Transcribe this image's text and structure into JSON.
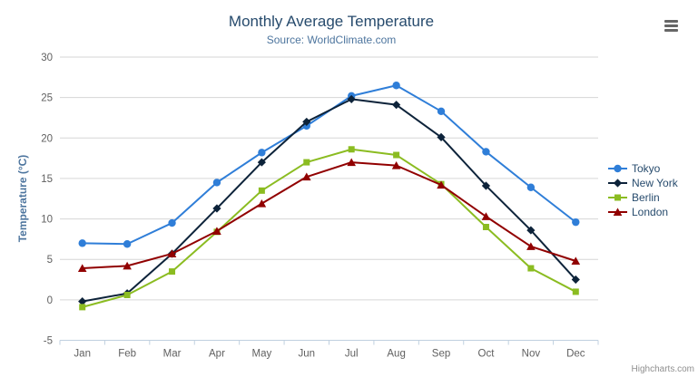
{
  "chart_data": {
    "type": "line",
    "title": "Monthly Average Temperature",
    "subtitle": "Source: WorldClimate.com",
    "categories": [
      "Jan",
      "Feb",
      "Mar",
      "Apr",
      "May",
      "Jun",
      "Jul",
      "Aug",
      "Sep",
      "Oct",
      "Nov",
      "Dec"
    ],
    "xlabel": "",
    "ylabel": "Temperature (°C)",
    "ylim": [
      -5,
      30
    ],
    "ytick_interval": 5,
    "grid": true,
    "legend_position": "right-middle",
    "series": [
      {
        "name": "Tokyo",
        "color": "#2f7ed8",
        "marker": "circle",
        "values": [
          7.0,
          6.9,
          9.5,
          14.5,
          18.2,
          21.5,
          25.2,
          26.5,
          23.3,
          18.3,
          13.9,
          9.6
        ]
      },
      {
        "name": "New York",
        "color": "#0d233a",
        "marker": "diamond",
        "values": [
          -0.2,
          0.8,
          5.7,
          11.3,
          17.0,
          22.0,
          24.8,
          24.1,
          20.1,
          14.1,
          8.6,
          2.5
        ]
      },
      {
        "name": "Berlin",
        "color": "#8bbc21",
        "marker": "square",
        "values": [
          -0.9,
          0.6,
          3.5,
          8.4,
          13.5,
          17.0,
          18.6,
          17.9,
          14.3,
          9.0,
          3.9,
          1.0
        ]
      },
      {
        "name": "London",
        "color": "#910000",
        "marker": "triangle",
        "values": [
          3.9,
          4.2,
          5.7,
          8.5,
          11.9,
          15.2,
          17.0,
          16.6,
          14.2,
          10.3,
          6.6,
          4.8
        ]
      }
    ]
  },
  "credit": "Highcharts.com",
  "icons": {
    "context_menu": "hamburger-icon"
  },
  "colors": {
    "background": "#ffffff",
    "grid": "#d6d6d6",
    "axis_line": "#c0d0e0",
    "tick": "#c0d0e0",
    "axis_label": "#606060",
    "title": "#274b6d",
    "subtitle": "#4d759e",
    "yaxis_title": "#4d759e",
    "legend_text": "#274b6d",
    "credit": "#8f8f8f",
    "menu_icon": "#666666"
  }
}
